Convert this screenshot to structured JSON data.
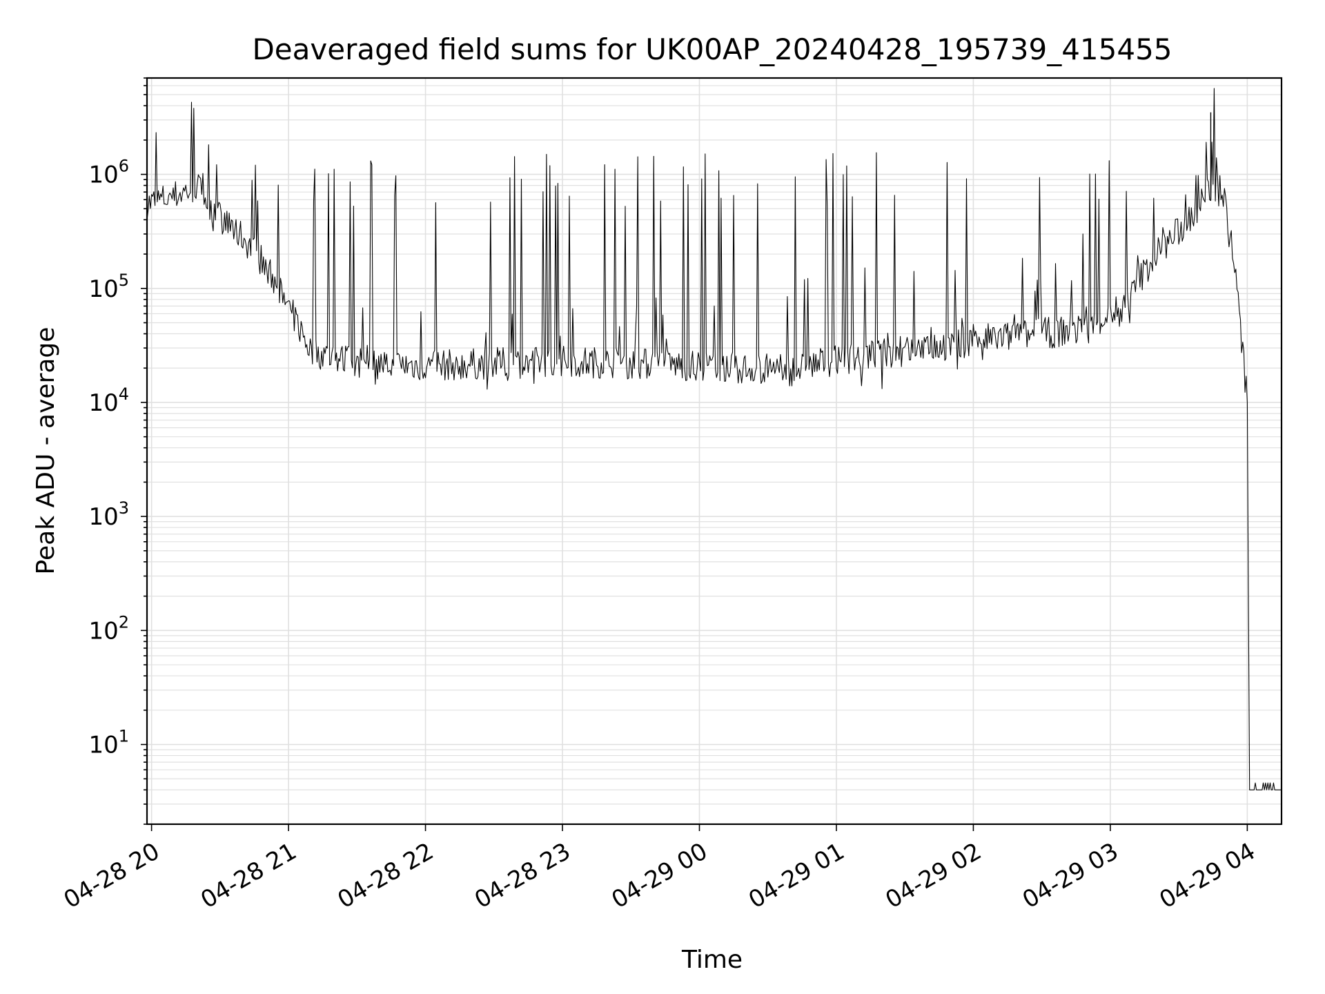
{
  "chart_data": {
    "type": "line",
    "title": "Deaveraged field sums for UK00AP_20240428_195739_415455",
    "xlabel": "Time",
    "ylabel": "Peak ADU - average",
    "x_scale": "time",
    "y_scale": "log",
    "xlim": [
      "2024-04-28 19:58",
      "2024-04-29 04:15"
    ],
    "ylim": [
      2,
      7000000
    ],
    "grid": true,
    "grid_minor": true,
    "line_color": "#000000",
    "grid_color": "#e0e0e0",
    "x_ticks": [
      {
        "t": "2024-04-28 20:00",
        "label": "04-28 20"
      },
      {
        "t": "2024-04-28 21:00",
        "label": "04-28 21"
      },
      {
        "t": "2024-04-28 22:00",
        "label": "04-28 22"
      },
      {
        "t": "2024-04-28 23:00",
        "label": "04-28 23"
      },
      {
        "t": "2024-04-29 00:00",
        "label": "04-29 00"
      },
      {
        "t": "2024-04-29 01:00",
        "label": "04-29 01"
      },
      {
        "t": "2024-04-29 02:00",
        "label": "04-29 02"
      },
      {
        "t": "2024-04-29 03:00",
        "label": "04-29 03"
      },
      {
        "t": "2024-04-29 04:00",
        "label": "04-29 04"
      }
    ],
    "y_ticks": [
      {
        "value": 10,
        "base": "10",
        "exp": "1"
      },
      {
        "value": 100,
        "base": "10",
        "exp": "2"
      },
      {
        "value": 1000,
        "base": "10",
        "exp": "3"
      },
      {
        "value": 10000,
        "base": "10",
        "exp": "4"
      },
      {
        "value": 100000,
        "base": "10",
        "exp": "5"
      },
      {
        "value": 1000000,
        "base": "10",
        "exp": "6"
      }
    ],
    "series": [
      {
        "baseline": [
          {
            "t": "2024-04-28 19:58",
            "y": 550000
          },
          {
            "t": "2024-04-28 20:10",
            "y": 650000
          },
          {
            "t": "2024-04-28 20:20",
            "y": 780000
          },
          {
            "t": "2024-04-28 20:30",
            "y": 420000
          },
          {
            "t": "2024-04-28 20:40",
            "y": 280000
          },
          {
            "t": "2024-04-28 20:50",
            "y": 160000
          },
          {
            "t": "2024-04-28 21:00",
            "y": 70000
          },
          {
            "t": "2024-04-28 21:10",
            "y": 28000
          },
          {
            "t": "2024-04-28 21:30",
            "y": 22000
          },
          {
            "t": "2024-04-28 22:00",
            "y": 21000
          },
          {
            "t": "2024-04-28 23:00",
            "y": 23000
          },
          {
            "t": "2024-04-29 00:00",
            "y": 21000
          },
          {
            "t": "2024-04-29 00:40",
            "y": 19000
          },
          {
            "t": "2024-04-29 01:00",
            "y": 24000
          },
          {
            "t": "2024-04-29 01:30",
            "y": 28000
          },
          {
            "t": "2024-04-29 02:00",
            "y": 35000
          },
          {
            "t": "2024-04-29 02:30",
            "y": 40000
          },
          {
            "t": "2024-04-29 02:50",
            "y": 45000
          },
          {
            "t": "2024-04-29 03:05",
            "y": 70000
          },
          {
            "t": "2024-04-29 03:20",
            "y": 200000
          },
          {
            "t": "2024-04-29 03:35",
            "y": 400000
          },
          {
            "t": "2024-04-29 03:45",
            "y": 800000
          },
          {
            "t": "2024-04-29 03:50",
            "y": 600000
          },
          {
            "t": "2024-04-29 03:55",
            "y": 120000
          },
          {
            "t": "2024-04-29 04:00",
            "y": 10000
          },
          {
            "t": "2024-04-29 04:01",
            "y": 4
          },
          {
            "t": "2024-04-29 04:15",
            "y": 4
          }
        ],
        "spikes_approx_peak": 1000000,
        "max_spike": {
          "t": "2024-04-29 03:44",
          "y": 3500000
        }
      }
    ]
  }
}
